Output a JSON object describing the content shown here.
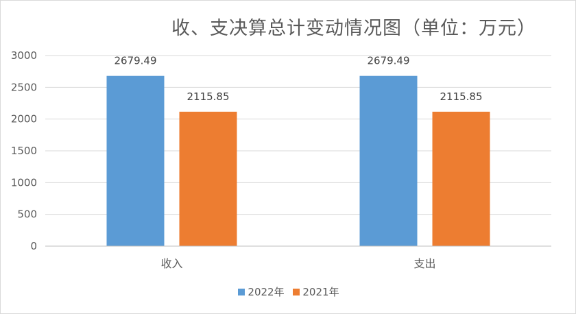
{
  "chart_data": {
    "type": "bar",
    "title": "收、支决算总计变动情况图（单位：万元）",
    "categories": [
      "收入",
      "支出"
    ],
    "series": [
      {
        "name": "2022年",
        "values": [
          2679.49,
          2679.49
        ],
        "labels": [
          "2679.49",
          "2679.49"
        ],
        "color": "#5b9bd5"
      },
      {
        "name": "2021年",
        "values": [
          2115.85,
          2115.85
        ],
        "labels": [
          "2115.85",
          "2115.85"
        ],
        "color": "#ed7d31"
      }
    ],
    "yticks": [
      "0",
      "500",
      "1000",
      "1500",
      "2000",
      "2500",
      "3000"
    ],
    "ylim": [
      0,
      3000
    ],
    "grid": true,
    "legend": "bottom"
  }
}
